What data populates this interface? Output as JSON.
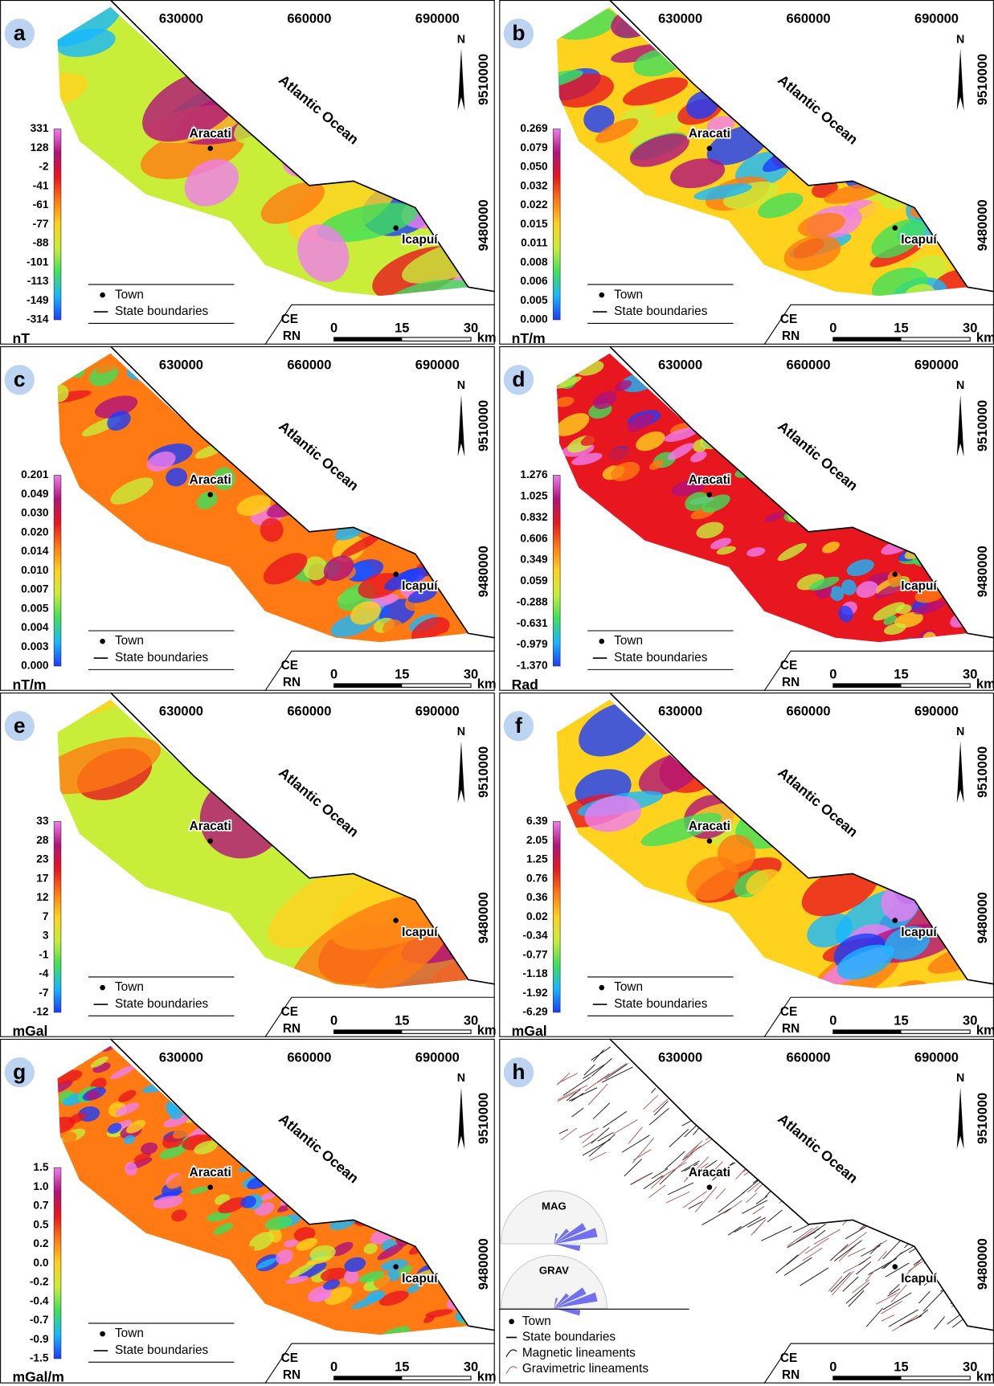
{
  "panels": [
    {
      "letter": "a",
      "x_labels": [
        "630000",
        "660000",
        "690000"
      ],
      "y_labels": [
        "9510000",
        "9480000"
      ],
      "north": "N",
      "ocean_label": "Atlantic Ocean",
      "towns": [
        "Aracati",
        "Icapuí"
      ],
      "colorbar": {
        "labels": [
          "331",
          "128",
          "-2",
          "-41",
          "-61",
          "-77",
          "-88",
          "-101",
          "-113",
          "-149",
          "-314"
        ],
        "unit": "nT"
      },
      "legend": [
        "Town",
        "State boundaries"
      ],
      "states": [
        "CE",
        "RN"
      ],
      "scale": [
        "0",
        "15",
        "30"
      ],
      "scale_unit": "km"
    },
    {
      "letter": "b",
      "x_labels": [
        "630000",
        "660000",
        "690000"
      ],
      "y_labels": [
        "9510000",
        "9480000"
      ],
      "north": "N",
      "ocean_label": "Atlantic Ocean",
      "towns": [
        "Aracati",
        "Icapuí"
      ],
      "colorbar": {
        "labels": [
          "0.269",
          "0.079",
          "0.050",
          "0.032",
          "0.022",
          "0.015",
          "0.011",
          "0.008",
          "0.006",
          "0.005",
          "0.000"
        ],
        "unit": "nT/m"
      },
      "legend": [
        "Town",
        "State boundaries"
      ],
      "states": [
        "CE",
        "RN"
      ],
      "scale": [
        "0",
        "15",
        "30"
      ],
      "scale_unit": "km"
    },
    {
      "letter": "c",
      "x_labels": [
        "630000",
        "660000",
        "690000"
      ],
      "y_labels": [
        "9510000",
        "9480000"
      ],
      "north": "N",
      "ocean_label": "Atlantic Ocean",
      "towns": [
        "Aracati",
        "Icapuí"
      ],
      "colorbar": {
        "labels": [
          "0.201",
          "0.049",
          "0.030",
          "0.020",
          "0.014",
          "0.010",
          "0.007",
          "0.005",
          "0.004",
          "0.003",
          "0.000"
        ],
        "unit": "nT/m"
      },
      "legend": [
        "Town",
        "State boundaries"
      ],
      "states": [
        "CE",
        "RN"
      ],
      "scale": [
        "0",
        "15",
        "30"
      ],
      "scale_unit": "km"
    },
    {
      "letter": "d",
      "x_labels": [
        "630000",
        "660000",
        "690000"
      ],
      "y_labels": [
        "9510000",
        "9480000"
      ],
      "north": "N",
      "ocean_label": "Atlantic Ocean",
      "towns": [
        "Aracati",
        "Icapuí"
      ],
      "colorbar": {
        "labels": [
          "1.276",
          "1.025",
          "0.832",
          "0.606",
          "0.349",
          "0.059",
          "-0.288",
          "-0.631",
          "-0.979",
          "-1.370"
        ],
        "unit": "Rad"
      },
      "legend": [
        "Town",
        "State boundaries"
      ],
      "states": [
        "CE",
        "RN"
      ],
      "scale": [
        "0",
        "15",
        "30"
      ],
      "scale_unit": "km"
    },
    {
      "letter": "e",
      "x_labels": [
        "630000",
        "660000",
        "690000"
      ],
      "y_labels": [
        "9510000",
        "9480000"
      ],
      "north": "N",
      "ocean_label": "Atlantic Ocean",
      "towns": [
        "Aracati",
        "Icapuí"
      ],
      "colorbar": {
        "labels": [
          "33",
          "28",
          "23",
          "17",
          "12",
          "7",
          "3",
          "-1",
          "-4",
          "-7",
          "-12"
        ],
        "unit": "mGal"
      },
      "legend": [
        "Town",
        "State boundaries"
      ],
      "states": [
        "CE",
        "RN"
      ],
      "scale": [
        "0",
        "15",
        "30"
      ],
      "scale_unit": "km"
    },
    {
      "letter": "f",
      "x_labels": [
        "630000",
        "660000",
        "690000"
      ],
      "y_labels": [
        "9510000",
        "9480000"
      ],
      "north": "N",
      "ocean_label": "Atlantic Ocean",
      "towns": [
        "Aracati",
        "Icapuí"
      ],
      "colorbar": {
        "labels": [
          "6.39",
          "2.05",
          "1.25",
          "0.76",
          "0.36",
          "0.02",
          "-0.34",
          "-0.77",
          "-1.18",
          "-1.92",
          "-6.29"
        ],
        "unit": "mGal"
      },
      "legend": [
        "Town",
        "State boundaries"
      ],
      "states": [
        "CE",
        "RN"
      ],
      "scale": [
        "0",
        "15",
        "30"
      ],
      "scale_unit": "km"
    },
    {
      "letter": "g",
      "x_labels": [
        "630000",
        "660000",
        "690000"
      ],
      "y_labels": [
        "9510000",
        "9480000"
      ],
      "north": "N",
      "ocean_label": "Atlantic Ocean",
      "towns": [
        "Aracati",
        "Icapuí"
      ],
      "colorbar": {
        "labels": [
          "1.5",
          "1.0",
          "0.7",
          "0.5",
          "0.2",
          "0.0",
          "-0.2",
          "-0.4",
          "-0.7",
          "-0.9",
          "-1.5"
        ],
        "unit": "mGal/m"
      },
      "legend": [
        "Town",
        "State boundaries"
      ],
      "states": [
        "CE",
        "RN"
      ],
      "scale": [
        "0",
        "15",
        "30"
      ],
      "scale_unit": "km"
    },
    {
      "letter": "h",
      "x_labels": [
        "630000",
        "660000",
        "690000"
      ],
      "y_labels": [
        "9510000",
        "9480000"
      ],
      "north": "N",
      "ocean_label": "Atlantic Ocean",
      "towns": [
        "Aracati",
        "Icapuí"
      ],
      "rose_labels": [
        "MAG",
        "GRAV"
      ],
      "legend": [
        "Town",
        "State boundaries",
        "Magnetic lineaments",
        "Gravimetric lineaments"
      ],
      "states": [
        "CE",
        "RN"
      ],
      "scale": [
        "0",
        "15",
        "30"
      ],
      "scale_unit": "km"
    }
  ]
}
